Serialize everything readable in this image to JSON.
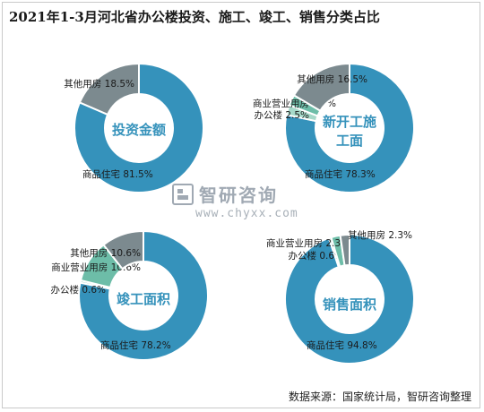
{
  "title": "2021年1-3月河北省办公楼投资、施工、竣工、销售分类占比",
  "source": "数据来源：国家统计局，智研咨询整理",
  "watermark": {
    "brand": "智研咨询",
    "url": "www.chyxx.com"
  },
  "colors": {
    "residential": "#3592bb",
    "office": "#a6d9c9",
    "commercial": "#6dbda8",
    "other": "#7c8a8f"
  },
  "chart_data": [
    {
      "type": "pie",
      "title": "投资金额",
      "slices": [
        {
          "label": "商品住宅",
          "value": 81.5,
          "text": "商品住宅 81.5%"
        },
        {
          "label": "其他用房",
          "value": 18.5,
          "text": "其他用房 18.5%"
        }
      ]
    },
    {
      "type": "pie",
      "title": "新开工施工面积",
      "slices": [
        {
          "label": "商品住宅",
          "value": 78.3,
          "text": "商品住宅 78.3%"
        },
        {
          "label": "办公楼",
          "value": 2.5,
          "text": "办公楼 2.5%"
        },
        {
          "label": "商业营业用房",
          "value": 2.7,
          "text": "商业营业用房 2.7%"
        },
        {
          "label": "其他用房",
          "value": 16.5,
          "text": "其他用房 16.5%"
        }
      ]
    },
    {
      "type": "pie",
      "title": "竣工面积",
      "slices": [
        {
          "label": "商品住宅",
          "value": 78.2,
          "text": "商品住宅 78.2%"
        },
        {
          "label": "办公楼",
          "value": 0.6,
          "text": "办公楼 0.6%"
        },
        {
          "label": "商业营业用房",
          "value": 10.6,
          "text": "商业营业用房 10.6%"
        },
        {
          "label": "其他用房",
          "value": 10.6,
          "text": "其他用房 10.6%"
        }
      ]
    },
    {
      "type": "pie",
      "title": "销售面积",
      "slices": [
        {
          "label": "商品住宅",
          "value": 94.8,
          "text": "商品住宅 94.8%"
        },
        {
          "label": "办公楼",
          "value": 0.6,
          "text": "办公楼 0.6%"
        },
        {
          "label": "商业营业用房",
          "value": 2.3,
          "text": "商业营业用房 2.3%"
        },
        {
          "label": "其他用房",
          "value": 2.3,
          "text": "其他用房 2.3%"
        }
      ]
    }
  ]
}
